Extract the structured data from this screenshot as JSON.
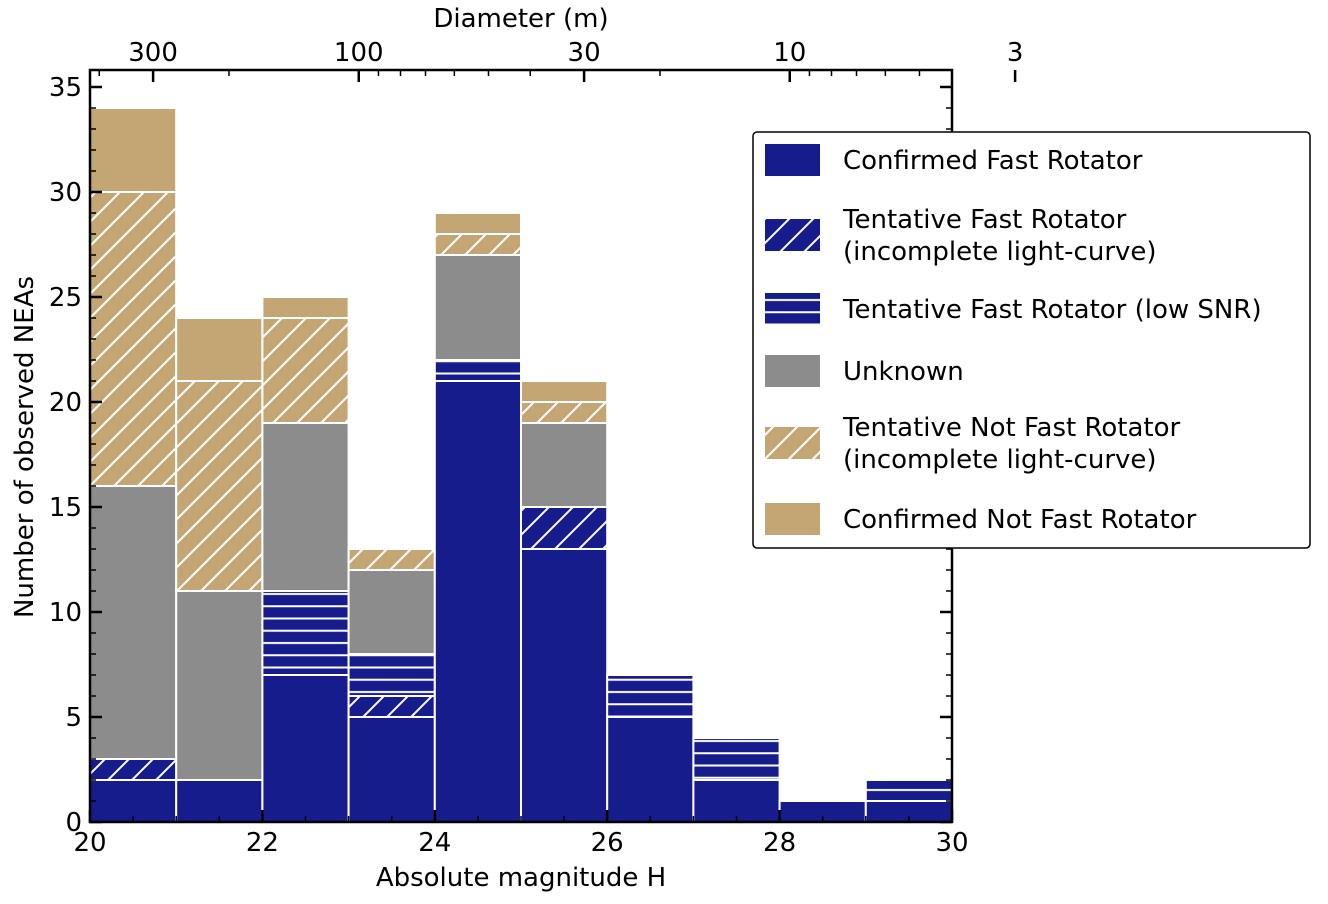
{
  "chart_data": {
    "type": "bar",
    "stacked": true,
    "xlabel": "Absolute magnitude H",
    "ylabel": "Number of observed NEAs",
    "top_xlabel": "Diameter (m)",
    "xlim": [
      20,
      30
    ],
    "ylim": [
      0,
      35
    ],
    "xticks": [
      20,
      22,
      24,
      26,
      28,
      30
    ],
    "yticks": [
      0,
      5,
      10,
      15,
      20,
      25,
      30,
      35
    ],
    "top_xticks": [
      300,
      100,
      30,
      10,
      3
    ],
    "bin_edges": [
      20,
      21,
      22,
      23,
      24,
      25,
      26,
      27,
      28,
      29,
      30
    ],
    "legend_position": "right",
    "series": [
      {
        "name": "Confirmed Fast Rotator",
        "color": "#171c8c",
        "hatch": "none",
        "values": [
          2,
          2,
          7,
          5,
          21,
          13,
          5,
          2,
          1,
          1
        ]
      },
      {
        "name": "Tentative Fast Rotator\n(incomplete light-curve)",
        "color": "#171c8c",
        "hatch": "diagonal",
        "values": [
          1,
          0,
          0,
          1,
          0,
          2,
          0,
          0,
          0,
          0
        ]
      },
      {
        "name": "Tentative Fast Rotator (low SNR)",
        "color": "#171c8c",
        "hatch": "horizontal",
        "values": [
          0,
          0,
          4,
          2,
          1,
          0,
          2,
          2,
          0,
          1
        ]
      },
      {
        "name": "Unknown",
        "color": "#8c8c8c",
        "hatch": "none",
        "values": [
          13,
          9,
          8,
          4,
          5,
          4,
          0,
          0,
          0,
          0
        ]
      },
      {
        "name": "Tentative Not Fast Rotator\n(incomplete light-curve)",
        "color": "#c4a674",
        "hatch": "diagonal",
        "values": [
          14,
          10,
          5,
          1,
          1,
          1,
          0,
          0,
          0,
          0
        ]
      },
      {
        "name": "Confirmed Not Fast Rotator",
        "color": "#c4a674",
        "hatch": "none",
        "values": [
          4,
          3,
          1,
          0,
          1,
          1,
          0,
          0,
          0,
          0
        ]
      }
    ]
  }
}
